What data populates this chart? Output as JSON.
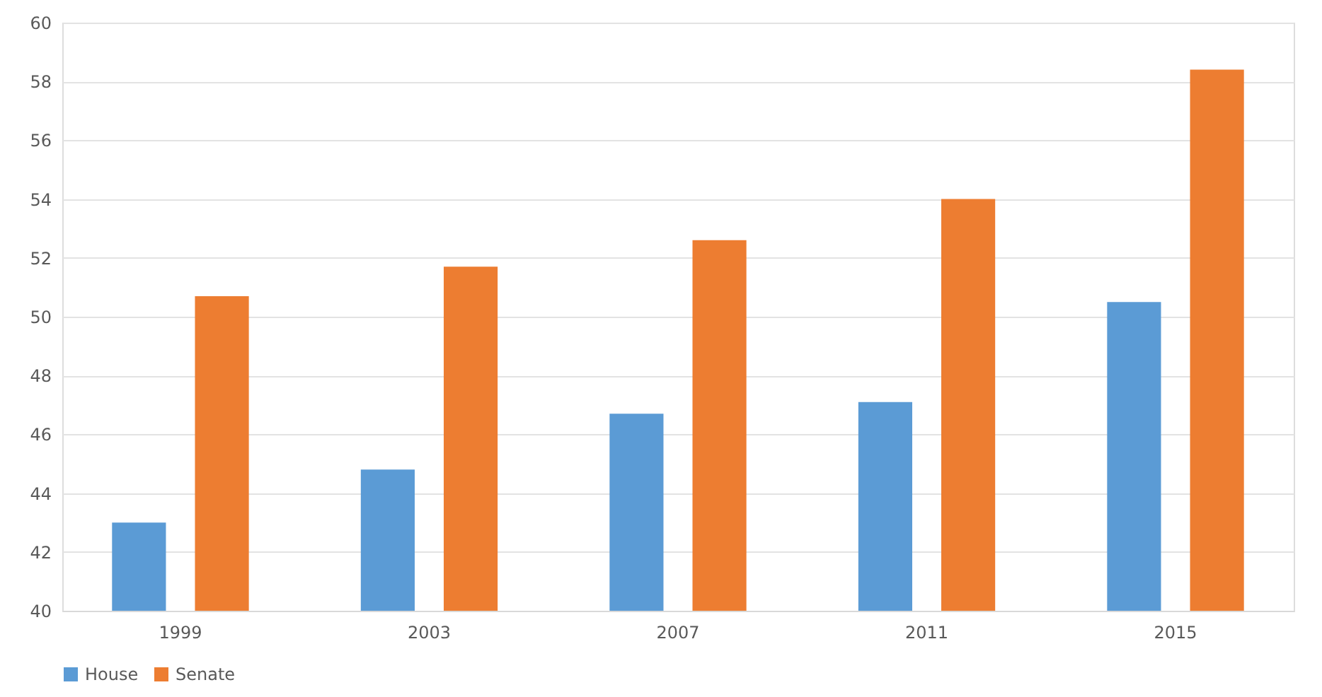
{
  "chart_data": {
    "type": "bar",
    "categories": [
      "1999",
      "2003",
      "2007",
      "2011",
      "2015"
    ],
    "series": [
      {
        "name": "House",
        "color": "#5b9bd5",
        "values": [
          43.0,
          44.8,
          46.7,
          47.1,
          50.5
        ]
      },
      {
        "name": "Senate",
        "color": "#ed7d31",
        "values": [
          50.7,
          51.7,
          52.6,
          54.0,
          58.4
        ]
      }
    ],
    "ylim": [
      40,
      60
    ],
    "yticks": [
      40,
      42,
      44,
      46,
      48,
      50,
      52,
      54,
      56,
      58,
      60
    ],
    "grid": "y",
    "legend": "bottom"
  }
}
